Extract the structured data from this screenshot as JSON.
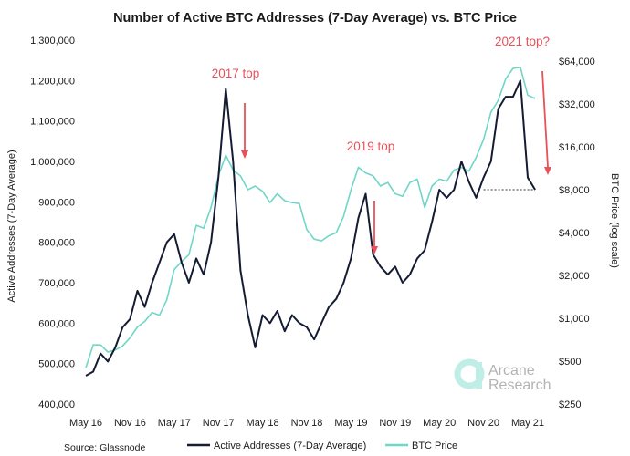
{
  "chart_data": {
    "type": "line",
    "title": "Number of Active BTC Addresses (7-Day Average) vs. BTC Price",
    "ylabel_left": "Active Addresses (7-Day Average)",
    "ylabel_right": "BTC Price (log scale)",
    "x_ticks": [
      "May 16",
      "Nov 16",
      "May 17",
      "Nov 17",
      "May 18",
      "Nov 18",
      "May 19",
      "Nov 19",
      "May 20",
      "Nov 20",
      "May 21"
    ],
    "y_left_ticks": [
      {
        "value": 400000,
        "label": "400,000"
      },
      {
        "value": 500000,
        "label": "500,000"
      },
      {
        "value": 600000,
        "label": "600,000"
      },
      {
        "value": 700000,
        "label": "700,000"
      },
      {
        "value": 800000,
        "label": "800,000"
      },
      {
        "value": 900000,
        "label": "900,000"
      },
      {
        "value": 1000000,
        "label": "1,000,000"
      },
      {
        "value": 1100000,
        "label": "1,100,000"
      },
      {
        "value": 1200000,
        "label": "1,200,000"
      },
      {
        "value": 1300000,
        "label": "1,300,000"
      }
    ],
    "y_left_range": [
      400000,
      1300000
    ],
    "y_right_ticks": [
      {
        "value": 250,
        "label": "$250"
      },
      {
        "value": 500,
        "label": "$500"
      },
      {
        "value": 1000,
        "label": "$1,000"
      },
      {
        "value": 2000,
        "label": "$2,000"
      },
      {
        "value": 4000,
        "label": "$4,000"
      },
      {
        "value": 8000,
        "label": "$8,000"
      },
      {
        "value": 16000,
        "label": "$16,000"
      },
      {
        "value": 32000,
        "label": "$32,000"
      },
      {
        "value": 64000,
        "label": "$64,000"
      }
    ],
    "y_right_range": [
      250,
      90000
    ],
    "y_right_scale": "log",
    "grid": false,
    "legend_position": "bottom",
    "series": [
      {
        "name": "Active Addresses (7-Day Average)",
        "color": "#141b33",
        "axis": "left",
        "points": [
          [
            "May 16",
            470000
          ],
          [
            "Jun 16",
            480000
          ],
          [
            "Jul 16",
            525000
          ],
          [
            "Aug 16",
            505000
          ],
          [
            "Sep 16",
            540000
          ],
          [
            "Oct 16",
            590000
          ],
          [
            "Nov 16",
            610000
          ],
          [
            "Dec 16",
            680000
          ],
          [
            "Jan 17",
            640000
          ],
          [
            "Feb 17",
            700000
          ],
          [
            "Mar 17",
            750000
          ],
          [
            "Apr 17",
            800000
          ],
          [
            "May 17",
            820000
          ],
          [
            "Jun 17",
            750000
          ],
          [
            "Jul 17",
            700000
          ],
          [
            "Aug 17",
            760000
          ],
          [
            "Sep 17",
            720000
          ],
          [
            "Oct 17",
            800000
          ],
          [
            "Nov 17",
            960000
          ],
          [
            "Dec 17",
            1180000
          ],
          [
            "Jan 18",
            1000000
          ],
          [
            "Feb 18",
            730000
          ],
          [
            "Mar 18",
            620000
          ],
          [
            "Apr 18",
            540000
          ],
          [
            "May 18",
            620000
          ],
          [
            "Jun 18",
            600000
          ],
          [
            "Jul 18",
            630000
          ],
          [
            "Aug 18",
            580000
          ],
          [
            "Sep 18",
            620000
          ],
          [
            "Oct 18",
            600000
          ],
          [
            "Nov 18",
            590000
          ],
          [
            "Dec 18",
            560000
          ],
          [
            "Jan 19",
            600000
          ],
          [
            "Feb 19",
            640000
          ],
          [
            "Mar 19",
            660000
          ],
          [
            "Apr 19",
            700000
          ],
          [
            "May 19",
            760000
          ],
          [
            "Jun 19",
            860000
          ],
          [
            "Jul 19",
            920000
          ],
          [
            "Aug 19",
            770000
          ],
          [
            "Sep 19",
            740000
          ],
          [
            "Oct 19",
            720000
          ],
          [
            "Nov 19",
            740000
          ],
          [
            "Dec 19",
            700000
          ],
          [
            "Jan 20",
            720000
          ],
          [
            "Feb 20",
            760000
          ],
          [
            "Mar 20",
            780000
          ],
          [
            "Apr 20",
            850000
          ],
          [
            "May 20",
            930000
          ],
          [
            "Jun 20",
            910000
          ],
          [
            "Jul 20",
            930000
          ],
          [
            "Aug 20",
            1000000
          ],
          [
            "Sep 20",
            950000
          ],
          [
            "Oct 20",
            910000
          ],
          [
            "Nov 20",
            960000
          ],
          [
            "Dec 20",
            1000000
          ],
          [
            "Jan 21",
            1130000
          ],
          [
            "Feb 21",
            1160000
          ],
          [
            "Mar 21",
            1160000
          ],
          [
            "Apr 21",
            1200000
          ],
          [
            "May 21",
            960000
          ],
          [
            "Jun 21",
            930000
          ]
        ]
      },
      {
        "name": "BTC Price",
        "color": "#6fd6c8",
        "axis": "right",
        "points": [
          [
            "May 16",
            450
          ],
          [
            "Jun 16",
            650
          ],
          [
            "Jul 16",
            650
          ],
          [
            "Aug 16",
            580
          ],
          [
            "Sep 16",
            600
          ],
          [
            "Oct 16",
            640
          ],
          [
            "Nov 16",
            730
          ],
          [
            "Dec 16",
            870
          ],
          [
            "Jan 17",
            950
          ],
          [
            "Feb 17",
            1100
          ],
          [
            "Mar 17",
            1050
          ],
          [
            "Apr 17",
            1350
          ],
          [
            "May 17",
            2200
          ],
          [
            "Jun 17",
            2500
          ],
          [
            "Jul 17",
            2800
          ],
          [
            "Aug 17",
            4500
          ],
          [
            "Sep 17",
            4300
          ],
          [
            "Oct 17",
            6000
          ],
          [
            "Nov 17",
            10000
          ],
          [
            "Dec 17",
            14000
          ],
          [
            "Jan 18",
            11000
          ],
          [
            "Feb 18",
            10000
          ],
          [
            "Mar 18",
            8000
          ],
          [
            "Apr 18",
            8500
          ],
          [
            "May 18",
            7800
          ],
          [
            "Jun 18",
            6500
          ],
          [
            "Jul 18",
            7500
          ],
          [
            "Aug 18",
            6700
          ],
          [
            "Sep 18",
            6500
          ],
          [
            "Oct 18",
            6400
          ],
          [
            "Nov 18",
            4200
          ],
          [
            "Dec 18",
            3600
          ],
          [
            "Jan 19",
            3500
          ],
          [
            "Feb 19",
            3800
          ],
          [
            "Mar 19",
            4000
          ],
          [
            "Apr 19",
            5200
          ],
          [
            "May 19",
            8000
          ],
          [
            "Jun 19",
            11500
          ],
          [
            "Jul 19",
            10500
          ],
          [
            "Aug 19",
            10000
          ],
          [
            "Sep 19",
            8500
          ],
          [
            "Oct 19",
            9000
          ],
          [
            "Nov 19",
            7500
          ],
          [
            "Dec 19",
            7200
          ],
          [
            "Jan 20",
            9000
          ],
          [
            "Feb 20",
            9500
          ],
          [
            "Mar 20",
            6000
          ],
          [
            "Apr 20",
            8500
          ],
          [
            "May 20",
            9500
          ],
          [
            "Jun 20",
            9200
          ],
          [
            "Jul 20",
            11000
          ],
          [
            "Aug 20",
            11500
          ],
          [
            "Sep 20",
            10800
          ],
          [
            "Oct 20",
            13500
          ],
          [
            "Nov 20",
            18000
          ],
          [
            "Dec 20",
            28000
          ],
          [
            "Jan 21",
            34000
          ],
          [
            "Feb 21",
            48000
          ],
          [
            "Mar 21",
            57000
          ],
          [
            "Apr 21",
            58000
          ],
          [
            "May 21",
            37000
          ],
          [
            "Jun 21",
            35000
          ]
        ]
      }
    ],
    "annotations": [
      "2017 top",
      "2019 top",
      "2021 top?"
    ],
    "reference_line": {
      "value_left": 930000,
      "style": "dotted"
    }
  },
  "source": "Source: Glassnode",
  "brand": {
    "line1": "Arcane",
    "line2": "Research",
    "accent": "#bfeee6"
  },
  "annotation_color": "#e8515a"
}
